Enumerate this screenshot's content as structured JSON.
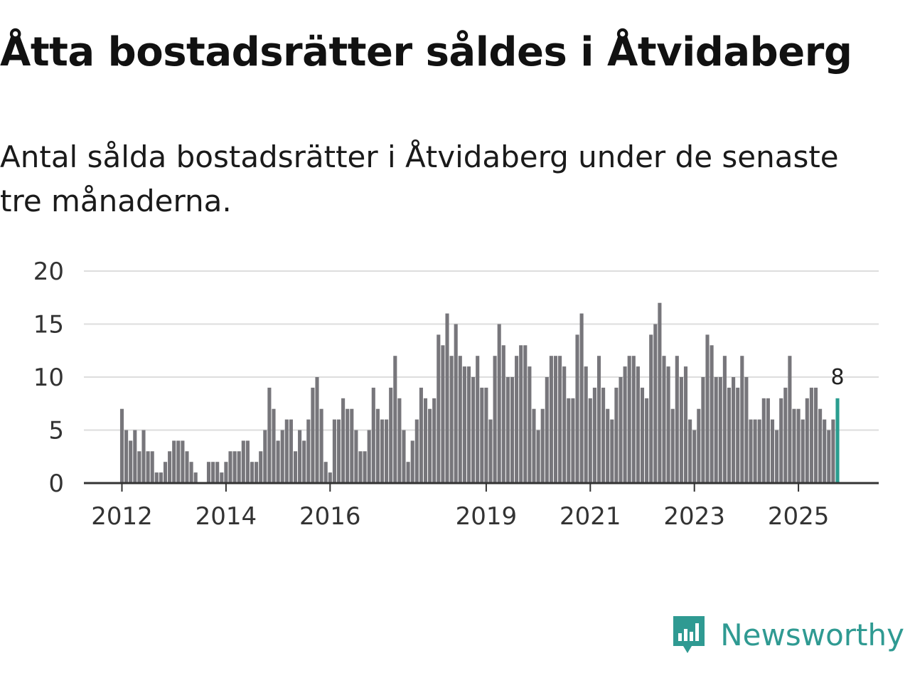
{
  "header": {
    "title": "Åtta bostadsrätter såldes i Åtvidaberg",
    "subtitle": "Antal sålda bostadsrätter i Åtvidaberg under de senaste tre månaderna."
  },
  "brand": {
    "name": "Newsworthy",
    "color": "#2f9a92"
  },
  "colors": {
    "bar": "#77767b",
    "highlight": "#2a9d8f",
    "grid": "#dddddd",
    "axis": "#333333"
  },
  "chart_data": {
    "type": "bar",
    "title": "Åtta bostadsrätter såldes i Åtvidaberg",
    "xlabel": "",
    "ylabel": "",
    "ylim": [
      0,
      20
    ],
    "yticks": [
      0,
      5,
      10,
      15,
      20
    ],
    "grid": true,
    "start": "2012-01",
    "xticks": [
      {
        "label": "2012",
        "month_index": 0
      },
      {
        "label": "2014",
        "month_index": 24
      },
      {
        "label": "2016",
        "month_index": 48
      },
      {
        "label": "2019",
        "month_index": 84
      },
      {
        "label": "2021",
        "month_index": 108
      },
      {
        "label": "2023",
        "month_index": 132
      },
      {
        "label": "2025",
        "month_index": 156
      }
    ],
    "values": [
      7,
      5,
      4,
      5,
      3,
      5,
      3,
      3,
      1,
      1,
      2,
      3,
      4,
      4,
      4,
      3,
      2,
      1,
      0,
      0,
      2,
      2,
      2,
      1,
      2,
      3,
      3,
      3,
      4,
      4,
      2,
      2,
      3,
      5,
      9,
      7,
      4,
      5,
      6,
      6,
      3,
      5,
      4,
      6,
      9,
      10,
      7,
      2,
      1,
      6,
      6,
      8,
      7,
      7,
      5,
      3,
      3,
      5,
      9,
      7,
      6,
      6,
      9,
      12,
      8,
      5,
      2,
      4,
      6,
      9,
      8,
      7,
      8,
      14,
      13,
      16,
      12,
      15,
      12,
      11,
      11,
      10,
      12,
      9,
      9,
      6,
      12,
      15,
      13,
      10,
      10,
      12,
      13,
      13,
      11,
      7,
      5,
      7,
      10,
      12,
      12,
      12,
      11,
      8,
      8,
      14,
      16,
      11,
      8,
      9,
      12,
      9,
      7,
      6,
      9,
      10,
      11,
      12,
      12,
      11,
      9,
      8,
      14,
      15,
      17,
      12,
      11,
      7,
      12,
      10,
      11,
      6,
      5,
      7,
      10,
      14,
      13,
      10,
      10,
      12,
      9,
      10,
      9,
      12,
      10,
      6,
      6,
      6,
      8,
      8,
      6,
      5,
      8,
      9,
      12,
      7,
      7,
      6,
      8,
      9,
      9,
      7,
      6,
      5,
      6,
      8
    ],
    "highlight_last": true,
    "last_value_label": "8"
  }
}
